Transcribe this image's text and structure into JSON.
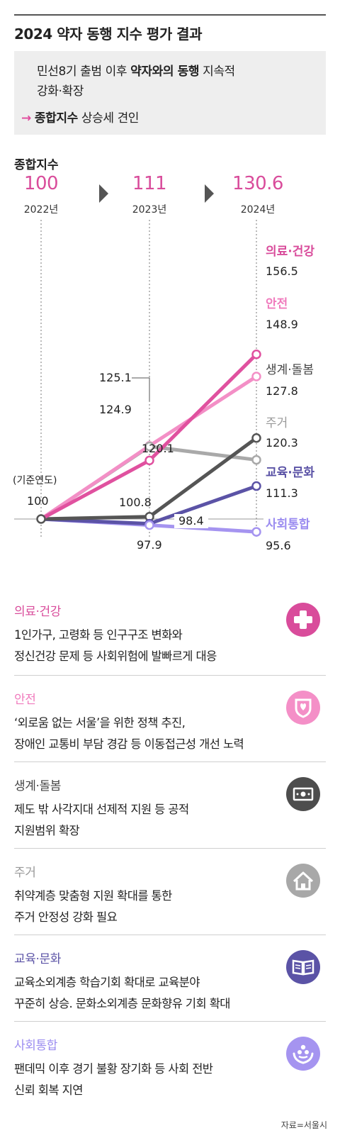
{
  "title": "2024 약자 동행 지수 평가 결과",
  "summary": {
    "line1_pre": "민선8기 출범 이후 ",
    "line1_bold": "약자와의 동행",
    "line1_post": " 지속적",
    "line2": "강화·확장",
    "arrow": "→",
    "line3_bold": "종합지수",
    "line3_post": " 상승세 견인"
  },
  "composite": {
    "label": "종합지수",
    "years": [
      {
        "value": "100",
        "year": "2022년"
      },
      {
        "value": "111",
        "year": "2023년"
      },
      {
        "value": "130.6",
        "year": "2024년"
      }
    ]
  },
  "chart_data": {
    "type": "line",
    "x": [
      "2022년",
      "2023년",
      "2024년"
    ],
    "base_note": "(기준연도)",
    "base_value": "100",
    "series": [
      {
        "name": "의료·건강",
        "values": [
          100,
          120.1,
          156.5
        ],
        "color": "#e0519f",
        "value_labels": [
          "",
          "120.1",
          "156.5"
        ]
      },
      {
        "name": "안전",
        "values": [
          100,
          125.1,
          148.9
        ],
        "color": "#f38fc6",
        "value_labels": [
          "",
          "125.1",
          "148.9"
        ]
      },
      {
        "name": "생계·돌봄",
        "values": [
          100,
          100.8,
          127.8
        ],
        "color": "#555555",
        "value_labels": [
          "",
          "100.8",
          "127.8"
        ]
      },
      {
        "name": "주거",
        "values": [
          100,
          124.9,
          120.3
        ],
        "color": "#a9a9a9",
        "value_labels": [
          "",
          "124.9",
          "120.3"
        ]
      },
      {
        "name": "교육·문화",
        "values": [
          100,
          98.4,
          111.3
        ],
        "color": "#5b53a6",
        "value_labels": [
          "",
          "98.4",
          "111.3"
        ]
      },
      {
        "name": "사회통합",
        "values": [
          100,
          97.9,
          95.6
        ],
        "color": "#a594f0",
        "value_labels": [
          "",
          "97.9",
          "95.6"
        ]
      }
    ]
  },
  "categories": [
    {
      "title": "의료·건강",
      "line1": "1인가구, 고령화 등 인구구조 변화와",
      "line2": "정신건강 문제 등 사회위험에 발빠르게 대응",
      "icon": "medical-cross-icon",
      "title_color": "#d94c9b",
      "icon_color": "#d94c9b"
    },
    {
      "title": "안전",
      "line1": "‘외로움 없는 서울’을 위한 정책 추진,",
      "line2": "장애인 교통비 부담 경감 등 이동접근성 개선 노력",
      "icon": "shield-icon",
      "title_color": "#f07bbd",
      "icon_color": "#f48fc7"
    },
    {
      "title": "생계·돌봄",
      "line1": "제도 밖 사각지대 선제적 지원 등 공적",
      "line2": "지원범위 확장",
      "icon": "cash-icon",
      "title_color": "#444444",
      "icon_color": "#4d4d4d"
    },
    {
      "title": "주거",
      "line1": "취약계층 맞춤형 지원 확대를 통한",
      "line2": "주거 안정성 강화 필요",
      "icon": "house-icon",
      "title_color": "#999999",
      "icon_color": "#a8a8a8"
    },
    {
      "title": "교육·문화",
      "line1": "교육소외계층 학습기회 확대로 교육분야",
      "line2": "꾸준히 상승. 문화소외계층 문화향유 기회 확대",
      "icon": "book-icon",
      "title_color": "#5b53a6",
      "icon_color": "#5b53a6"
    },
    {
      "title": "사회통합",
      "line1": "팬데믹 이후 경기 불황 장기화 등 사회 전반",
      "line2": "신뢰 회복 지연",
      "icon": "hands-people-icon",
      "title_color": "#9b8cf0",
      "icon_color": "#a594f0"
    }
  ],
  "source": "자료=서울시"
}
